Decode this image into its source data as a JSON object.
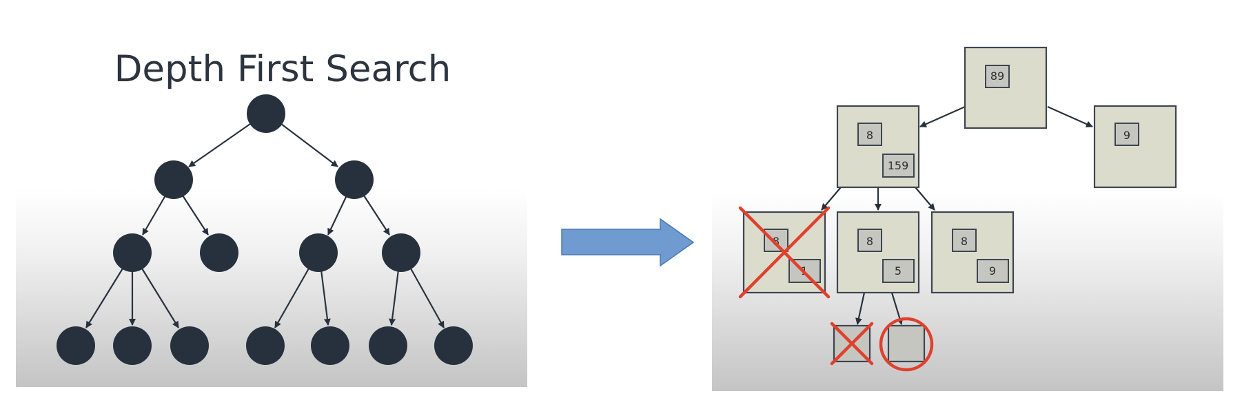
{
  "title": "Depth First Search",
  "colors": {
    "node_fill": "#27313e",
    "box_fill": "#dcdccd",
    "inner_box_fill": "#c6c6c1",
    "mark_red": "#e0402c",
    "arrow_fill": "#6f9bd1"
  },
  "boxes": {
    "root": {
      "top": "89"
    },
    "a": {
      "top": "8",
      "bottom": "159"
    },
    "b": {
      "top": "9"
    },
    "c": {
      "top": "8",
      "bottom": "1"
    },
    "d": {
      "top": "8",
      "bottom": "5"
    },
    "e": {
      "top": "8",
      "bottom": "9"
    }
  }
}
